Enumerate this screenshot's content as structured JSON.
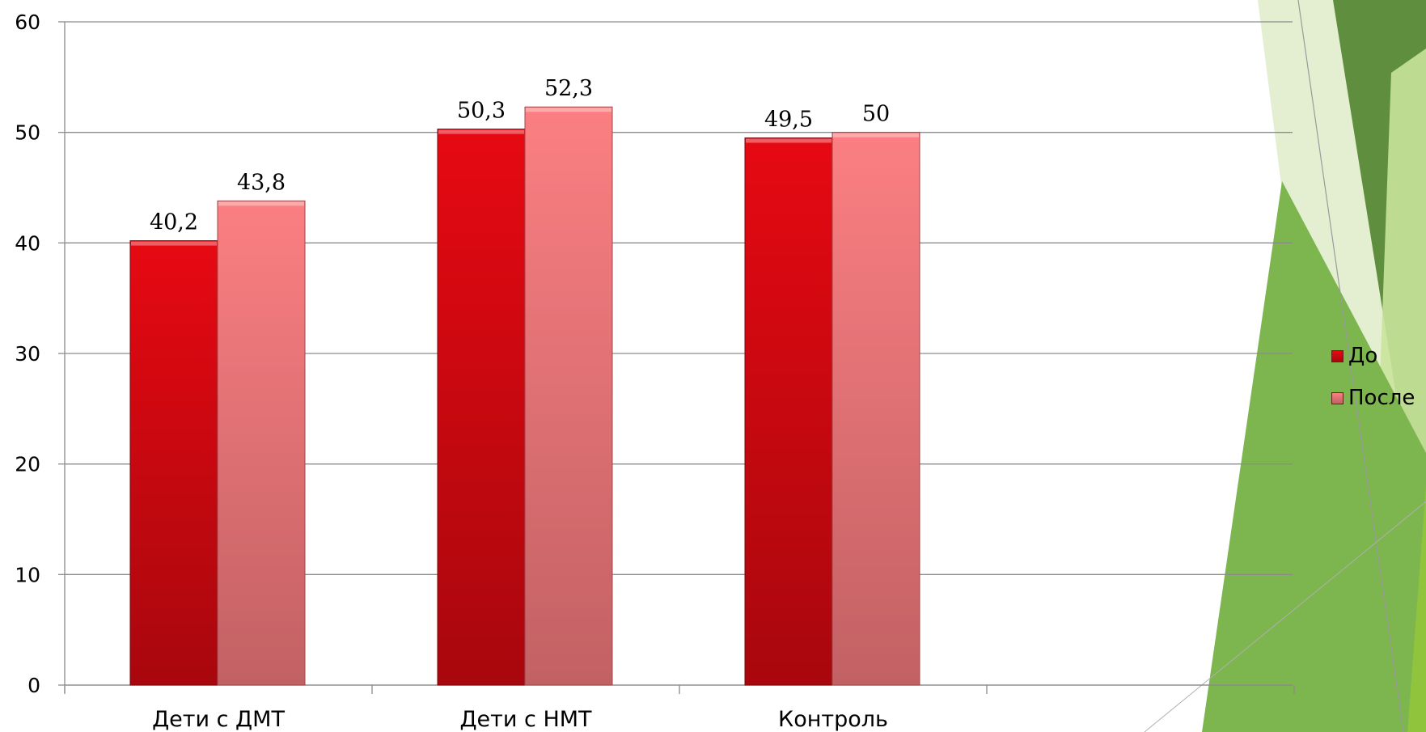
{
  "chart_data": {
    "type": "bar",
    "categories": [
      "Дети с ДМТ",
      "Дети с НМТ",
      "Контроль",
      ""
    ],
    "series": [
      {
        "name": "До",
        "values": [
          40.2,
          50.3,
          49.5,
          null
        ],
        "labels": [
          "40,2",
          "50,3",
          "49,5",
          ""
        ]
      },
      {
        "name": "После",
        "values": [
          43.8,
          52.3,
          50,
          null
        ],
        "labels": [
          "43,8",
          "52,3",
          "50",
          ""
        ]
      }
    ],
    "ylim": [
      0,
      60
    ],
    "yticks": [
      0,
      10,
      20,
      30,
      40,
      50,
      60
    ],
    "grid": true,
    "legend_position": "right"
  },
  "colors": {
    "series_before": "#d00a12",
    "series_after": "#f07b7e",
    "grid": "#8c8c8c",
    "decor_dark_green": "#5f8f3e",
    "decor_mid_green": "#7db54f",
    "decor_light_green": "#c5de9a"
  }
}
